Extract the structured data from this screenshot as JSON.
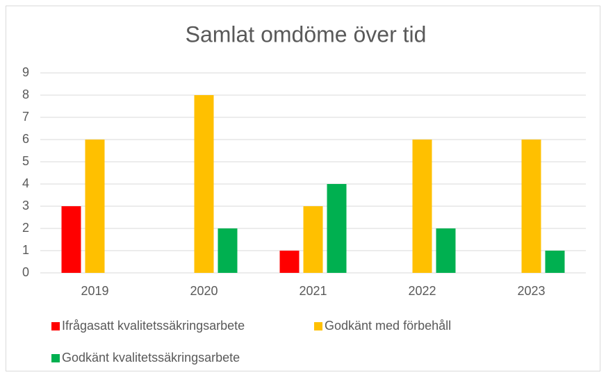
{
  "chart_data": {
    "type": "bar",
    "title": "Samlat omdöme över tid",
    "categories": [
      "2019",
      "2020",
      "2021",
      "2022",
      "2023"
    ],
    "series": [
      {
        "name": "Ifrågasatt kvalitetssäkringsarbete",
        "color": "#ff0000",
        "values": [
          3,
          0,
          1,
          0,
          0
        ]
      },
      {
        "name": "Godkänt med förbehåll",
        "color": "#ffc000",
        "values": [
          6,
          8,
          3,
          6,
          6
        ]
      },
      {
        "name": "Godkänt kvalitetssäkringsarbete",
        "color": "#00b050",
        "values": [
          0,
          2,
          4,
          2,
          1
        ]
      }
    ],
    "ylim": [
      0,
      9
    ],
    "yticks": [
      0,
      1,
      2,
      3,
      4,
      5,
      6,
      7,
      8,
      9
    ],
    "grid": true,
    "legend": "bottom"
  }
}
